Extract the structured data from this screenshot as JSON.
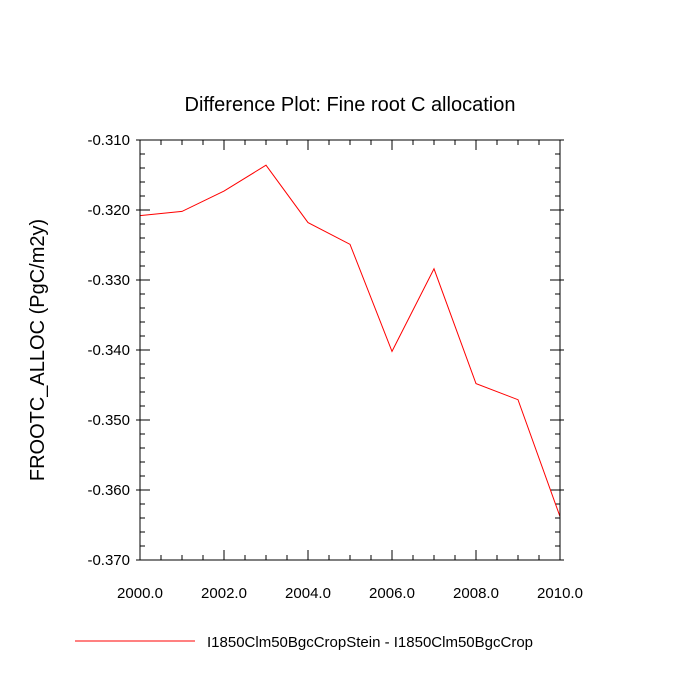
{
  "chart_data": {
    "type": "line",
    "title": "Difference Plot: Fine root C allocation",
    "xlabel": "",
    "ylabel": "FROOTC_ALLOC  (PgC/m2y)",
    "xlim": [
      2000.0,
      2010.0
    ],
    "ylim": [
      -0.37,
      -0.31
    ],
    "x_ticks": [
      "2000.0",
      "2002.0",
      "2004.0",
      "2006.0",
      "2008.0",
      "2010.0"
    ],
    "y_ticks": [
      "-0.310",
      "-0.320",
      "-0.330",
      "-0.340",
      "-0.350",
      "-0.360",
      "-0.370"
    ],
    "grid": false,
    "legend_position": "bottom",
    "series": [
      {
        "name": "I1850Clm50BgcCropStein - I1850Clm50BgcCrop",
        "color": "#ff0000",
        "x": [
          2000,
          2001,
          2002,
          2003,
          2004,
          2005,
          2006,
          2007,
          2008,
          2009,
          2010
        ],
        "y": [
          -0.3208,
          -0.3202,
          -0.3173,
          -0.3136,
          -0.3218,
          -0.3249,
          -0.3402,
          -0.3284,
          -0.3448,
          -0.3471,
          -0.3638
        ]
      }
    ]
  }
}
